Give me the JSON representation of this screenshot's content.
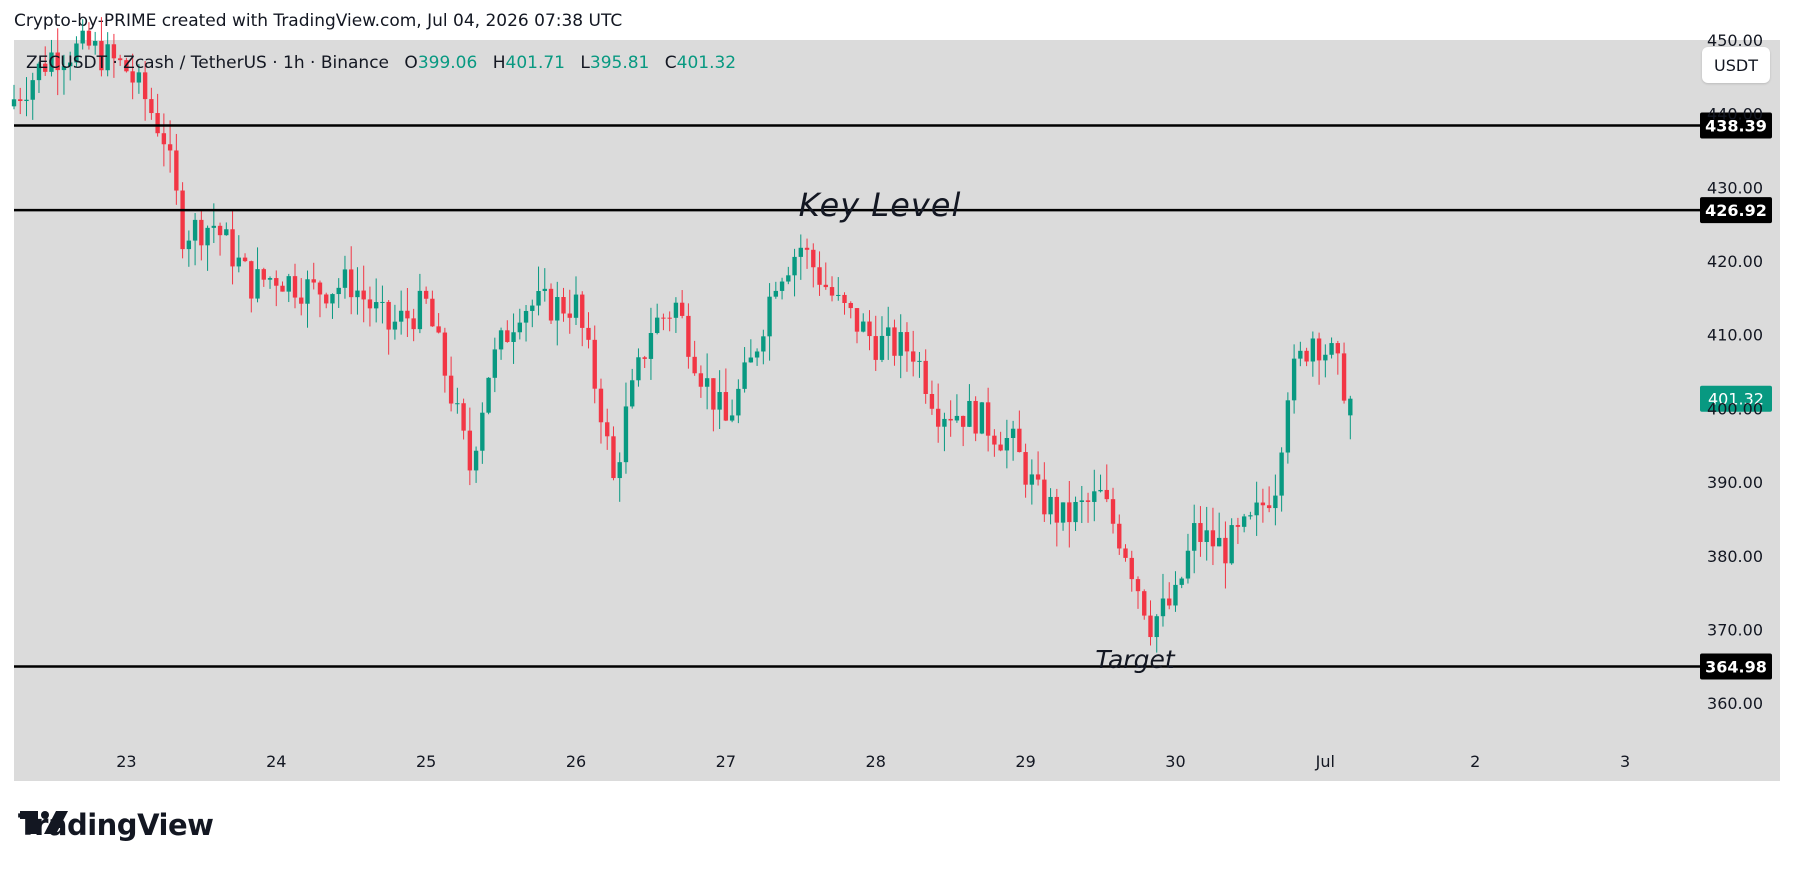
{
  "header": {
    "attribution": "Crypto-by-PRIME created with TradingView.com, Jul 04, 2026 07:38 UTC"
  },
  "legend": {
    "symbol": "ZECUSDT · Zcash / TetherUS · 1h · Binance",
    "open_label": "O",
    "open": "399.06",
    "high_label": "H",
    "high": "401.71",
    "low_label": "L",
    "low": "395.81",
    "close_label": "C",
    "close": "401.32"
  },
  "unit_button": "USDT",
  "annotations": {
    "key_level": "Key Level",
    "target": "Target"
  },
  "footer": {
    "brand": "TradingView"
  },
  "colors": {
    "up": "#089981",
    "down": "#f23645",
    "background": "#dbdbdb",
    "level_line": "#000000"
  },
  "chart_data": {
    "type": "candlestick",
    "timeframe": "1h",
    "ylim": [
      355,
      450
    ],
    "y_ticks": [
      360,
      370,
      380,
      390,
      400,
      410,
      420,
      430,
      440,
      450
    ],
    "y_tick_labels": [
      "360.00",
      "370.00",
      "380.00",
      "390.00",
      "400.00",
      "410.00",
      "420.00",
      "430.00",
      "440.00",
      "450.00"
    ],
    "x_start": "2026-06-22T06:00",
    "x_end": "2026-07-03T12:00",
    "x_ticks": [
      {
        "date": "2026-06-23T00:00",
        "label": "23"
      },
      {
        "date": "2026-06-24T00:00",
        "label": "24"
      },
      {
        "date": "2026-06-25T00:00",
        "label": "25"
      },
      {
        "date": "2026-06-26T00:00",
        "label": "26"
      },
      {
        "date": "2026-06-27T00:00",
        "label": "27"
      },
      {
        "date": "2026-06-28T00:00",
        "label": "28"
      },
      {
        "date": "2026-06-29T00:00",
        "label": "29"
      },
      {
        "date": "2026-06-30T00:00",
        "label": "30"
      },
      {
        "date": "2026-07-01T00:00",
        "label": "Jul"
      },
      {
        "date": "2026-07-02T00:00",
        "label": "2"
      },
      {
        "date": "2026-07-03T00:00",
        "label": "3"
      }
    ],
    "horizontal_levels": [
      {
        "price": 438.39,
        "label": "438.39"
      },
      {
        "price": 426.92,
        "label": "426.92"
      },
      {
        "price": 364.98,
        "label": "364.98"
      }
    ],
    "last_price": {
      "price": 401.32,
      "label": "401.32"
    },
    "ohlc_anchors": [
      {
        "t": "2026-06-22T06:00",
        "close": 442
      },
      {
        "t": "2026-06-22T12:00",
        "close": 448
      },
      {
        "t": "2026-06-22T18:00",
        "close": 449
      },
      {
        "t": "2026-06-23T00:00",
        "close": 446
      },
      {
        "t": "2026-06-23T03:00",
        "close": 442
      },
      {
        "t": "2026-06-23T06:00",
        "close": 437
      },
      {
        "t": "2026-06-23T09:00",
        "close": 424
      },
      {
        "t": "2026-06-23T14:00",
        "close": 425
      },
      {
        "t": "2026-06-23T20:00",
        "close": 417
      },
      {
        "t": "2026-06-24T00:00",
        "close": 418
      },
      {
        "t": "2026-06-24T06:00",
        "close": 416
      },
      {
        "t": "2026-06-24T12:00",
        "close": 417
      },
      {
        "t": "2026-06-24T18:00",
        "close": 411
      },
      {
        "t": "2026-06-25T00:00",
        "close": 414
      },
      {
        "t": "2026-06-25T04:00",
        "close": 402
      },
      {
        "t": "2026-06-25T07:00",
        "close": 392
      },
      {
        "t": "2026-06-25T10:00",
        "close": 405
      },
      {
        "t": "2026-06-25T15:00",
        "close": 414
      },
      {
        "t": "2026-06-26T00:00",
        "close": 414
      },
      {
        "t": "2026-06-26T04:00",
        "close": 400
      },
      {
        "t": "2026-06-26T06:00",
        "close": 390
      },
      {
        "t": "2026-06-26T08:00",
        "close": 399
      },
      {
        "t": "2026-06-26T12:00",
        "close": 411
      },
      {
        "t": "2026-06-26T16:00",
        "close": 414
      },
      {
        "t": "2026-06-26T20:00",
        "close": 405
      },
      {
        "t": "2026-06-27T00:00",
        "close": 398
      },
      {
        "t": "2026-06-27T04:00",
        "close": 406
      },
      {
        "t": "2026-06-27T08:00",
        "close": 418
      },
      {
        "t": "2026-06-27T12:00",
        "close": 422
      },
      {
        "t": "2026-06-27T18:00",
        "close": 414
      },
      {
        "t": "2026-06-28T00:00",
        "close": 409
      },
      {
        "t": "2026-06-28T06:00",
        "close": 408
      },
      {
        "t": "2026-06-28T10:00",
        "close": 400
      },
      {
        "t": "2026-06-28T16:00",
        "close": 399
      },
      {
        "t": "2026-06-28T22:00",
        "close": 395
      },
      {
        "t": "2026-06-29T02:00",
        "close": 388
      },
      {
        "t": "2026-06-29T06:00",
        "close": 385
      },
      {
        "t": "2026-06-29T12:00",
        "close": 388
      },
      {
        "t": "2026-06-29T16:00",
        "close": 381
      },
      {
        "t": "2026-06-29T20:00",
        "close": 371
      },
      {
        "t": "2026-06-30T00:00",
        "close": 374
      },
      {
        "t": "2026-06-30T03:00",
        "close": 383
      },
      {
        "t": "2026-06-30T08:00",
        "close": 381
      },
      {
        "t": "2026-06-30T12:00",
        "close": 384
      },
      {
        "t": "2026-06-30T16:00",
        "close": 390
      },
      {
        "t": "2026-06-30T18:00",
        "close": 403
      },
      {
        "t": "2026-06-30T22:00",
        "close": 410
      },
      {
        "t": "2026-07-01T01:00",
        "close": 407
      },
      {
        "t": "2026-07-01T04:00",
        "close": 401.32
      }
    ]
  }
}
